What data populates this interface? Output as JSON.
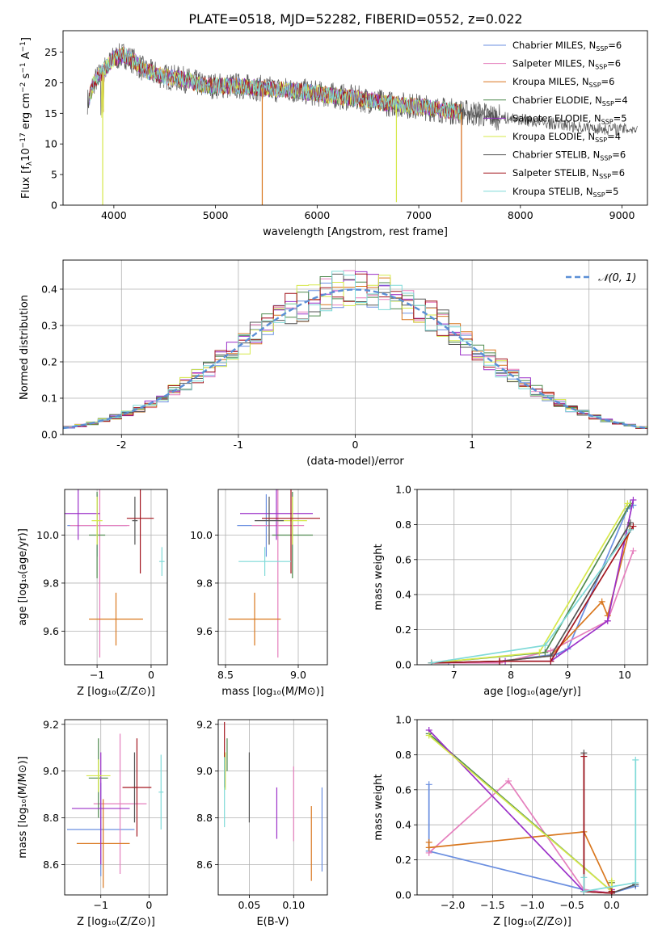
{
  "title": "PLATE=0518, MJD=52282, FIBERID=0552, z=0.022",
  "series": [
    {
      "name": "Chabrier MILES, N$_{SSP}$=6",
      "label_main": "Chabrier MILES, N",
      "label_sub": "SSP",
      "label_tail": "=6",
      "color": "#6b8fe0"
    },
    {
      "name": "Salpeter MILES, N$_{SSP}$=6",
      "label_main": "Salpeter MILES, N",
      "label_sub": "SSP",
      "label_tail": "=6",
      "color": "#e57fbd"
    },
    {
      "name": "Kroupa MILES, N$_{SSP}$=6",
      "label_main": "Kroupa MILES, N",
      "label_sub": "SSP",
      "label_tail": "=6",
      "color": "#d9771e"
    },
    {
      "name": "Chabrier ELODIE, N$_{SSP}$=4",
      "label_main": "Chabrier ELODIE, N",
      "label_sub": "SSP",
      "label_tail": "=4",
      "color": "#4f8a4f"
    },
    {
      "name": "Salpeter ELODIE, N$_{SSP}$=5",
      "label_main": "Salpeter ELODIE, N",
      "label_sub": "SSP",
      "label_tail": "=5",
      "color": "#9b30c8"
    },
    {
      "name": "Kroupa ELODIE, N$_{SSP}$=4",
      "label_main": "Kroupa ELODIE, N",
      "label_sub": "SSP",
      "label_tail": "=4",
      "color": "#d6e84a"
    },
    {
      "name": "Chabrier STELIB, N$_{SSP}$=6",
      "label_main": "Chabrier STELIB, N",
      "label_sub": "SSP",
      "label_tail": "=6",
      "color": "#555555"
    },
    {
      "name": "Salpeter STELIB, N$_{SSP}$=6",
      "label_main": "Salpeter STELIB, N",
      "label_sub": "SSP",
      "label_tail": "=6",
      "color": "#a3161f"
    },
    {
      "name": "Kroupa STELIB, N$_{SSP}$=5",
      "label_main": "Kroupa STELIB, N",
      "label_sub": "SSP",
      "label_tail": "=5",
      "color": "#7fdad8"
    }
  ],
  "chart_data": [
    {
      "id": "spectrum",
      "type": "line",
      "title": "PLATE=0518, MJD=52282, FIBERID=0552, z=0.022",
      "xlabel": "wavelength [Angstrom, rest frame]",
      "ylabel_main": "Flux [f",
      "ylabel_parts": [
        "Flux [f",
        "λ",
        "10",
        "−17",
        " erg cm",
        "−2",
        " s",
        "−1",
        " A",
        "−1",
        "]"
      ],
      "xlim": [
        3500,
        9250
      ],
      "ylim": [
        0,
        28.5
      ],
      "xticks": [
        4000,
        5000,
        6000,
        7000,
        8000,
        9000
      ],
      "yticks": [
        0,
        5,
        10,
        15,
        20,
        25
      ],
      "spectrum_envelope": {
        "x": [
          3750,
          3800,
          3900,
          4000,
          4100,
          4200,
          4300,
          4500,
          4700,
          4900,
          5000,
          5200,
          5500,
          5800,
          6100,
          6400,
          6700,
          7000,
          7200,
          7400,
          7600,
          7800,
          8000,
          8200,
          8400,
          8600,
          8800,
          9000,
          9150
        ],
        "y": [
          17,
          20,
          22,
          24,
          24.5,
          23.5,
          22,
          21,
          20.5,
          19.5,
          19.5,
          19.5,
          19.0,
          18.7,
          18.0,
          17.4,
          16.6,
          16.1,
          15.6,
          15.2,
          14.9,
          14.3,
          14.0,
          13.5,
          13.2,
          12.7,
          12.5,
          12.4,
          12.5
        ]
      },
      "spikes": [
        {
          "x": 3890,
          "y": 0,
          "series": 5
        },
        {
          "x": 5460,
          "y": 0,
          "series": 2
        },
        {
          "x": 6780,
          "y": 0.5,
          "series": 5
        },
        {
          "x": 7420,
          "y": 0.5,
          "series": 1
        },
        {
          "x": 7420,
          "y": 0.5,
          "series": 2
        }
      ],
      "legend": "upper right"
    },
    {
      "id": "residuals",
      "type": "histogram",
      "xlabel": "(data-model)/error",
      "ylabel": "Normed distribution",
      "xlim": [
        -2.5,
        2.5
      ],
      "ylim": [
        0,
        0.48
      ],
      "xticks": [
        -2,
        -1,
        0,
        1,
        2
      ],
      "yticks": [
        0.0,
        0.1,
        0.2,
        0.3,
        0.4
      ],
      "grid": true,
      "reference_label": "𝒩(0, 1)",
      "legend": "upper right"
    },
    {
      "id": "age-vs-Z",
      "type": "errorbar",
      "xlabel": "Z [log₁₀(Z/Z⊙)]",
      "ylabel": "age  [log₁₀(age/yr)]",
      "xlim": [
        -1.6,
        0.3
      ],
      "ylim": [
        9.46,
        10.19
      ],
      "xticks": [
        -1,
        0
      ],
      "xticklabels": [
        "−1",
        "0"
      ],
      "yticks": [
        9.6,
        9.8,
        10.0
      ],
      "yticklabels": [
        "9.6",
        "9.8",
        "10.0"
      ],
      "grid": true,
      "points": [
        {
          "series": 0,
          "x": -1.0,
          "xerr": 0.55,
          "y": 10.04,
          "yerr": 0.13
        },
        {
          "series": 1,
          "x": -0.95,
          "xerr": 0.55,
          "y": 10.04,
          "yerr": 0.55
        },
        {
          "series": 2,
          "x": -0.65,
          "xerr": 0.5,
          "y": 9.65,
          "yerr": 0.11
        },
        {
          "series": 3,
          "x": -1.0,
          "xerr": 0.15,
          "y": 10.0,
          "yerr": 0.18
        },
        {
          "series": 4,
          "x": -1.35,
          "xerr": 0.4,
          "y": 10.09,
          "yerr": 0.11
        },
        {
          "series": 5,
          "x": -1.0,
          "xerr": 0.1,
          "y": 10.06,
          "yerr": 0.1
        },
        {
          "series": 6,
          "x": -0.3,
          "xerr": 0.05,
          "y": 10.06,
          "yerr": 0.1
        },
        {
          "series": 7,
          "x": -0.2,
          "xerr": 0.25,
          "y": 10.07,
          "yerr": 0.23
        },
        {
          "series": 8,
          "x": 0.2,
          "xerr": 0.05,
          "y": 9.89,
          "yerr": 0.06
        }
      ]
    },
    {
      "id": "age-vs-mass",
      "type": "errorbar",
      "xlabel": "mass [log₁₀(M/M⊙)]",
      "ylabel": "",
      "xlim": [
        8.45,
        9.2
      ],
      "ylim": [
        9.46,
        10.19
      ],
      "xticks": [
        8.5,
        9.0
      ],
      "xticklabels": [
        "8.5",
        "9.0"
      ],
      "yticks": [
        9.6,
        9.8,
        10.0
      ],
      "yticklabels": [
        "9.6",
        "9.8",
        "10.0"
      ],
      "grid": true,
      "points": [
        {
          "series": 0,
          "x": 8.78,
          "xerr": 0.2,
          "y": 10.04,
          "yerr": 0.13
        },
        {
          "series": 1,
          "x": 8.86,
          "xerr": 0.18,
          "y": 10.04,
          "yerr": 0.55
        },
        {
          "series": 2,
          "x": 8.7,
          "xerr": 0.18,
          "y": 9.65,
          "yerr": 0.11
        },
        {
          "series": 3,
          "x": 8.96,
          "xerr": 0.14,
          "y": 10.0,
          "yerr": 0.18
        },
        {
          "series": 4,
          "x": 8.85,
          "xerr": 0.25,
          "y": 10.09,
          "yerr": 0.11
        },
        {
          "series": 5,
          "x": 8.96,
          "xerr": 0.1,
          "y": 10.06,
          "yerr": 0.1
        },
        {
          "series": 6,
          "x": 8.8,
          "xerr": 0.1,
          "y": 10.06,
          "yerr": 0.1
        },
        {
          "series": 7,
          "x": 8.95,
          "xerr": 0.2,
          "y": 10.07,
          "yerr": 0.23
        },
        {
          "series": 8,
          "x": 8.77,
          "xerr": 0.18,
          "y": 9.89,
          "yerr": 0.06
        }
      ]
    },
    {
      "id": "mass-weight-vs-age",
      "type": "line",
      "xlabel": "age  [log₁₀(age/yr)]",
      "ylabel": "mass weight",
      "xlim": [
        6.35,
        10.4
      ],
      "ylim": [
        0,
        1.0
      ],
      "xticks": [
        7,
        8,
        9,
        10
      ],
      "yticks": [
        0.0,
        0.2,
        0.4,
        0.6,
        0.8,
        1.0
      ],
      "grid": true,
      "lines": [
        {
          "series": 0,
          "x": [
            6.9,
            7.8,
            8.8,
            9.0,
            10.05,
            10.15
          ],
          "y": [
            0.01,
            0.02,
            0.06,
            0.09,
            0.89,
            0.91
          ]
        },
        {
          "series": 1,
          "x": [
            6.6,
            7.8,
            8.7,
            9.7,
            10.15
          ],
          "y": [
            0.01,
            0.01,
            0.08,
            0.25,
            0.65
          ]
        },
        {
          "series": 2,
          "x": [
            6.6,
            7.8,
            8.7,
            9.6,
            9.7,
            10.1
          ],
          "y": [
            0.01,
            0.02,
            0.05,
            0.36,
            0.28,
            0.79
          ]
        },
        {
          "series": 3,
          "x": [
            6.6,
            8.6,
            10.1
          ],
          "y": [
            0.01,
            0.07,
            0.92
          ]
        },
        {
          "series": 4,
          "x": [
            6.6,
            7.9,
            8.7,
            9.7,
            10.15
          ],
          "y": [
            0.01,
            0.02,
            0.02,
            0.25,
            0.94
          ]
        },
        {
          "series": 5,
          "x": [
            6.6,
            8.5,
            10.05
          ],
          "y": [
            0.01,
            0.07,
            0.92
          ]
        },
        {
          "series": 6,
          "x": [
            6.6,
            7.8,
            8.7,
            10.1
          ],
          "y": [
            0.01,
            0.02,
            0.05,
            0.81
          ]
        },
        {
          "series": 7,
          "x": [
            6.6,
            7.8,
            8.7,
            10.15
          ],
          "y": [
            0.01,
            0.02,
            0.02,
            0.79
          ]
        },
        {
          "series": 8,
          "x": [
            6.6,
            8.6,
            10.1
          ],
          "y": [
            0.01,
            0.11,
            0.77
          ]
        }
      ]
    },
    {
      "id": "mass-vs-Z",
      "type": "errorbar",
      "xlabel": "Z [log₁₀(Z/Z⊙)]",
      "ylabel": "mass [log₁₀(M/M⊙)]",
      "xlim": [
        -1.75,
        0.38
      ],
      "ylim": [
        8.47,
        9.22
      ],
      "xticks": [
        -1,
        0
      ],
      "xticklabels": [
        "−1",
        "0"
      ],
      "yticks": [
        8.6,
        8.8,
        9.0,
        9.2
      ],
      "yticklabels": [
        "8.6",
        "8.8",
        "9.0",
        "9.2"
      ],
      "grid": true,
      "points": [
        {
          "series": 0,
          "x": -1.0,
          "xerr": 0.7,
          "y": 8.75,
          "yerr": 0.2
        },
        {
          "series": 1,
          "x": -0.6,
          "xerr": 0.55,
          "y": 8.86,
          "yerr": 0.3
        },
        {
          "series": 2,
          "x": -0.95,
          "xerr": 0.55,
          "y": 8.69,
          "yerr": 0.19
        },
        {
          "series": 3,
          "x": -1.05,
          "xerr": 0.2,
          "y": 8.97,
          "yerr": 0.17
        },
        {
          "series": 4,
          "x": -1.0,
          "xerr": 0.6,
          "y": 8.84,
          "yerr": 0.24
        },
        {
          "series": 5,
          "x": -1.05,
          "xerr": 0.25,
          "y": 8.98,
          "yerr": 0.07
        },
        {
          "series": 6,
          "x": -0.3,
          "xerr": 0.05,
          "y": 8.93,
          "yerr": 0.15
        },
        {
          "series": 7,
          "x": -0.25,
          "xerr": 0.3,
          "y": 8.93,
          "yerr": 0.21
        },
        {
          "series": 8,
          "x": 0.25,
          "xerr": 0.05,
          "y": 8.91,
          "yerr": 0.16
        }
      ]
    },
    {
      "id": "mass-vs-ebv",
      "type": "errorbar",
      "xlabel": "E(B-V)",
      "ylabel": "",
      "xlim": [
        0.015,
        0.138
      ],
      "ylim": [
        8.47,
        9.22
      ],
      "xticks": [
        0.05,
        0.1
      ],
      "xticklabels": [
        "0.05",
        "0.10"
      ],
      "yticks": [
        8.6,
        8.8,
        9.0,
        9.2
      ],
      "yticklabels": [
        "8.6",
        "8.8",
        "9.0",
        "9.2"
      ],
      "grid": true,
      "points": [
        {
          "series": 0,
          "x": 0.132,
          "y": 8.75,
          "yerr": 0.18
        },
        {
          "series": 1,
          "x": 0.1,
          "y": 8.86,
          "yerr": 0.16
        },
        {
          "series": 2,
          "x": 0.12,
          "y": 8.69,
          "yerr": 0.16
        },
        {
          "series": 3,
          "x": 0.025,
          "y": 9.07,
          "yerr": 0.07
        },
        {
          "series": 4,
          "x": 0.081,
          "y": 8.82,
          "yerr": 0.11
        },
        {
          "series": 5,
          "x": 0.023,
          "y": 9.0,
          "yerr": 0.08
        },
        {
          "series": 6,
          "x": 0.05,
          "y": 8.93,
          "yerr": 0.15
        },
        {
          "series": 7,
          "x": 0.022,
          "y": 9.07,
          "yerr": 0.14
        },
        {
          "series": 8,
          "x": 0.022,
          "y": 8.91,
          "yerr": 0.15
        }
      ]
    },
    {
      "id": "mass-weight-vs-Z",
      "type": "line",
      "xlabel": "Z [log₁₀(Z/Z⊙)]",
      "ylabel": "mass weight",
      "xlim": [
        -2.45,
        0.45
      ],
      "ylim": [
        0,
        1.0
      ],
      "xticks": [
        -2.0,
        -1.5,
        -1.0,
        -0.5,
        0.0
      ],
      "xticklabels": [
        "−2.0",
        "−1.5",
        "−1.0",
        "−0.5",
        "0.0"
      ],
      "yticks": [
        0.0,
        0.2,
        0.4,
        0.6,
        0.8,
        1.0
      ],
      "grid": true,
      "lines": [
        {
          "series": 0,
          "x": [
            -2.3,
            -2.3,
            -0.35,
            0.0,
            0.3
          ],
          "y": [
            0.63,
            0.25,
            0.03,
            0.01,
            0.05
          ]
        },
        {
          "series": 1,
          "x": [
            -2.3,
            -1.3,
            -0.35,
            0.0,
            0.0
          ],
          "y": [
            0.24,
            0.65,
            0.03,
            0.01,
            0.03
          ]
        },
        {
          "series": 2,
          "x": [
            -2.3,
            -2.3,
            -0.35,
            0.0,
            0.0
          ],
          "y": [
            0.3,
            0.27,
            0.36,
            0.02,
            0.07
          ]
        },
        {
          "series": 3,
          "x": [
            -2.3,
            0.0,
            0.0
          ],
          "y": [
            0.92,
            0.02,
            0.07
          ]
        },
        {
          "series": 4,
          "x": [
            -2.3,
            -0.35,
            0.0,
            0.0
          ],
          "y": [
            0.94,
            0.02,
            0.01,
            0.03
          ]
        },
        {
          "series": 5,
          "x": [
            -2.3,
            0.0,
            0.0
          ],
          "y": [
            0.91,
            0.02,
            0.08
          ]
        },
        {
          "series": 6,
          "x": [
            -0.35,
            -0.35,
            0.0,
            0.3
          ],
          "y": [
            0.81,
            0.02,
            0.01,
            0.06
          ]
        },
        {
          "series": 7,
          "x": [
            -0.35,
            -0.35,
            0.0,
            0.0
          ],
          "y": [
            0.79,
            0.02,
            0.01,
            0.02
          ]
        },
        {
          "series": 8,
          "x": [
            -0.35,
            -0.35,
            0.3,
            0.3
          ],
          "y": [
            0.1,
            0.02,
            0.07,
            0.77
          ]
        }
      ]
    }
  ]
}
